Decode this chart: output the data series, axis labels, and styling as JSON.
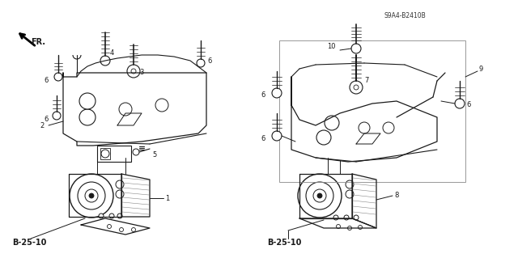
{
  "background_color": "#ffffff",
  "line_color": "#1a1a1a",
  "fig_width": 6.4,
  "fig_height": 3.19,
  "dpi": 100,
  "header_left": "B-25-10",
  "header_right": "B-25-10",
  "footer_code": "S9A4-B2410B",
  "fr_label": "FR."
}
